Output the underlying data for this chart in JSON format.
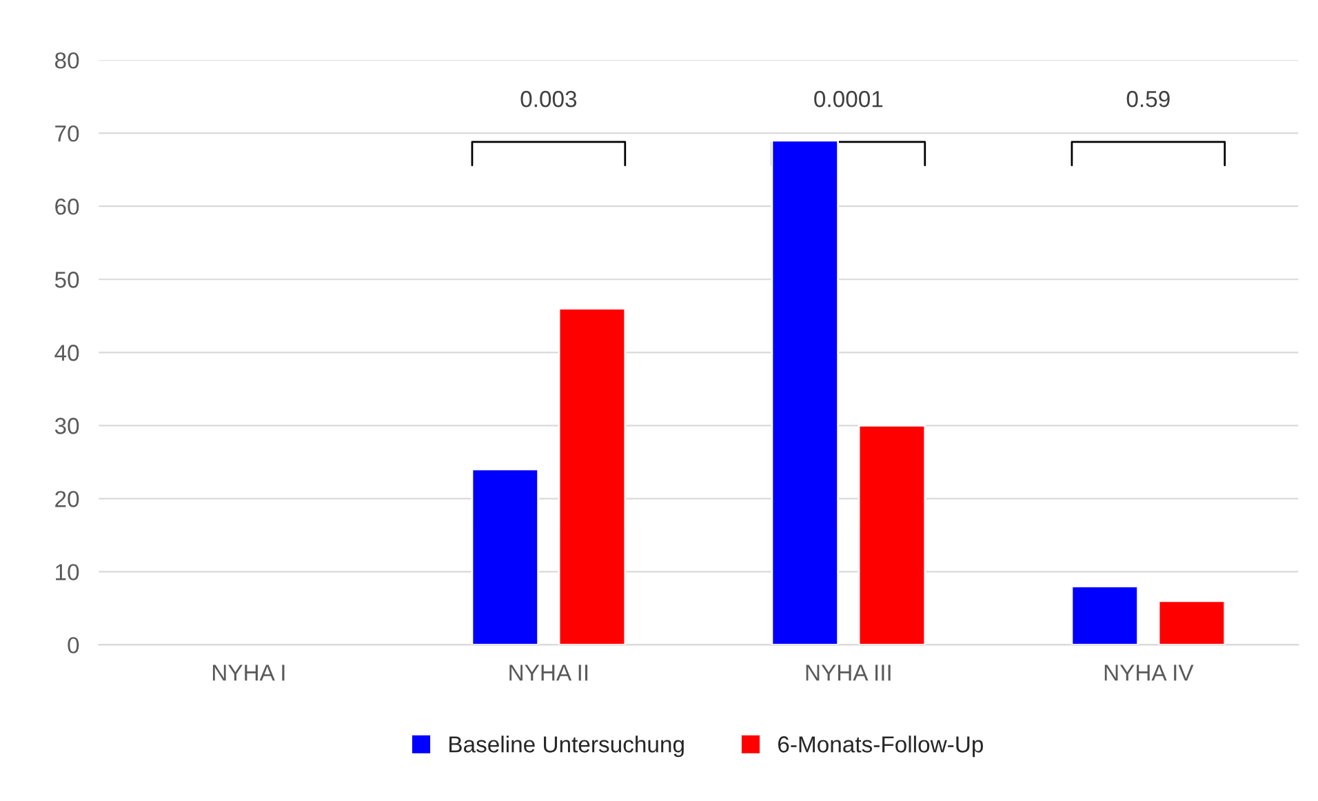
{
  "chart_data": {
    "type": "bar",
    "categories": [
      "NYHA I",
      "NYHA II",
      "NYHA III",
      "NYHA IV"
    ],
    "series": [
      {
        "name": "Baseline Untersuchung",
        "color": "#0000ff",
        "values": [
          null,
          24,
          69,
          8
        ]
      },
      {
        "name": "6-Monats-Follow-Up",
        "color": "#ff0000",
        "values": [
          null,
          46,
          30,
          6
        ]
      }
    ],
    "ylim": [
      0,
      80
    ],
    "yticks": [
      0,
      10,
      20,
      30,
      40,
      50,
      60,
      70,
      80
    ],
    "grid": "y",
    "legend": "bottom",
    "annotations": [
      "0.003",
      "0.0001",
      "0.59"
    ]
  }
}
